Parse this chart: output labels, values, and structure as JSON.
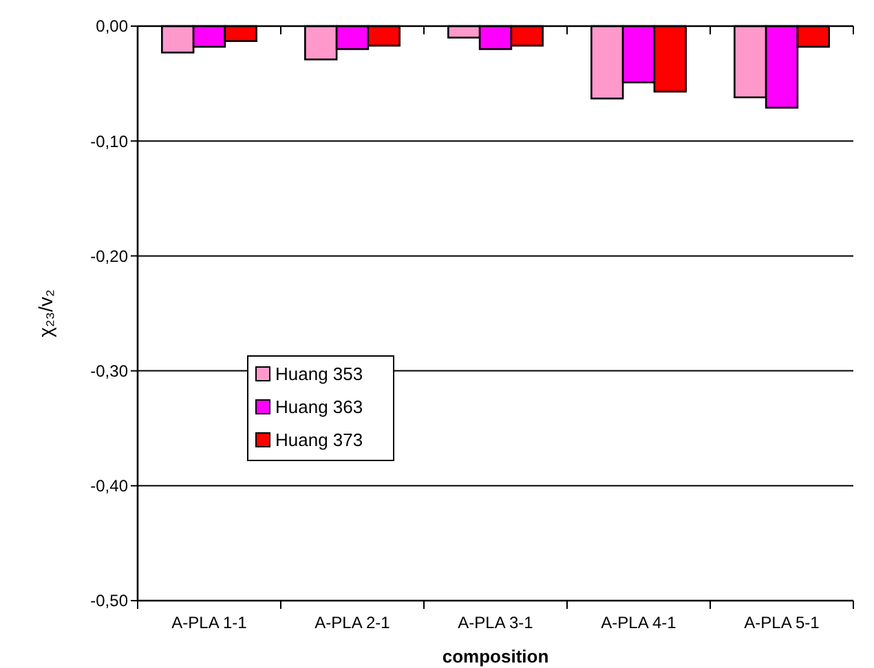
{
  "chart_data": {
    "type": "bar",
    "xlabel": "composition",
    "ylabel": "χ₂₃/v₂",
    "categories": [
      "A-PLA 1-1",
      "A-PLA 2-1",
      "A-PLA 3-1",
      "A-PLA 4-1",
      "A-PLA 5-1"
    ],
    "series": [
      {
        "name": "Huang 353",
        "color": "#ff99cc",
        "values": [
          -0.023,
          -0.029,
          -0.01,
          -0.063,
          -0.062
        ]
      },
      {
        "name": "Huang 363",
        "color": "#ff00ff",
        "values": [
          -0.018,
          -0.02,
          -0.02,
          -0.049,
          -0.071
        ]
      },
      {
        "name": "Huang 373",
        "color": "#ff0000",
        "values": [
          -0.013,
          -0.017,
          -0.017,
          -0.057,
          -0.018
        ]
      }
    ],
    "ylim": [
      -0.5,
      0
    ],
    "yticks": [
      {
        "value": -0.5,
        "label": "-0,50"
      },
      {
        "value": -0.4,
        "label": "-0,40"
      },
      {
        "value": -0.3,
        "label": "-0,30"
      },
      {
        "value": -0.2,
        "label": "-0,20"
      },
      {
        "value": -0.1,
        "label": "-0,10"
      },
      {
        "value": 0,
        "label": "0,00"
      }
    ],
    "grid": "y",
    "legend": "left"
  }
}
